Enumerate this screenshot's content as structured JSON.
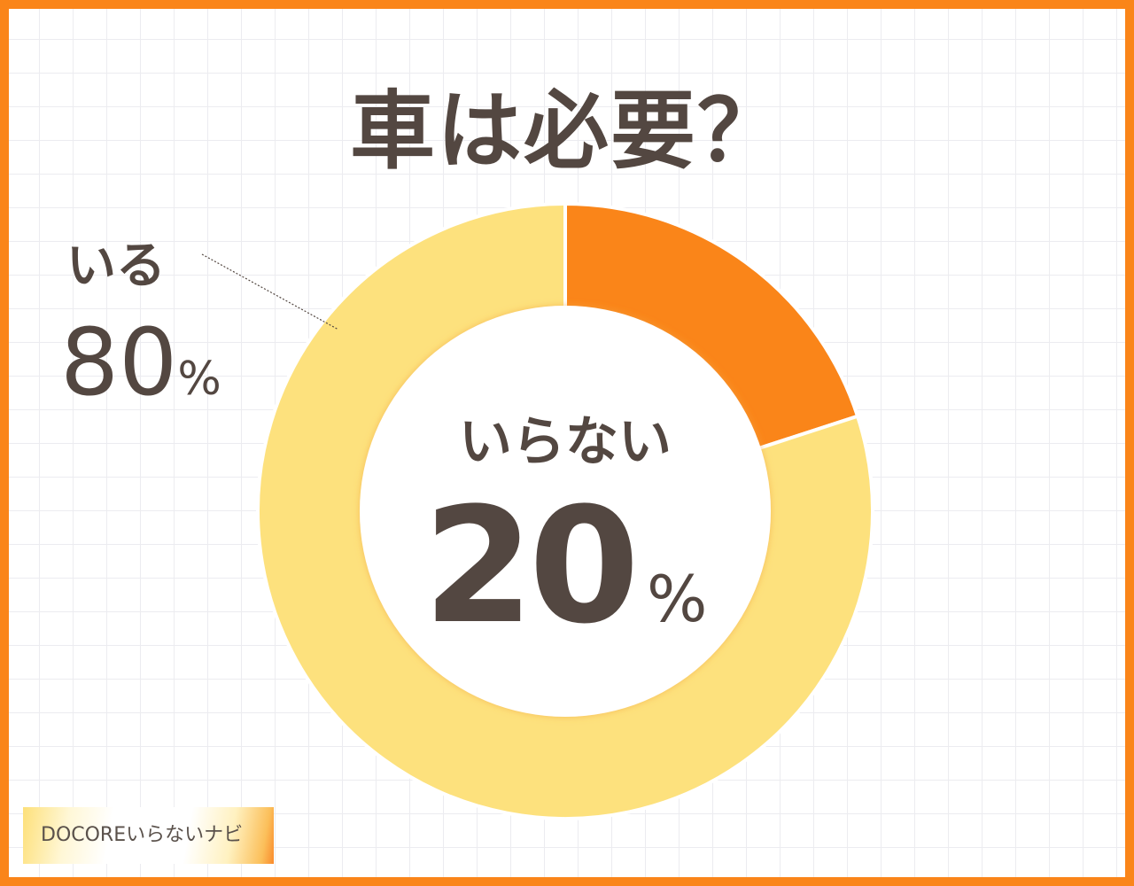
{
  "title": "車は必要？",
  "chart_data": {
    "type": "pie",
    "donut": true,
    "categories": [
      "いらない",
      "いる"
    ],
    "values": [
      20,
      80
    ],
    "unit": "%",
    "colors": [
      "#fa8519",
      "#fde17d"
    ],
    "labels": [
      {
        "text": "いらない",
        "value": "20",
        "unit": "%"
      },
      {
        "text": "いる",
        "value": "80",
        "unit": "%"
      }
    ]
  },
  "logo": {
    "text": "DOCOREいらないナビ"
  }
}
